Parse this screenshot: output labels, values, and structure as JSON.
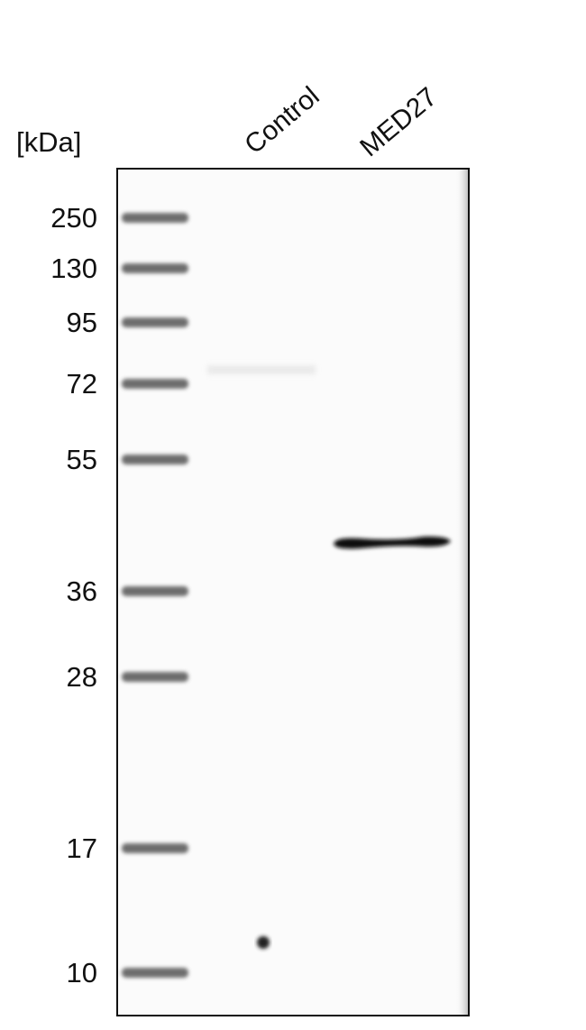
{
  "unit_label": "[kDa]",
  "lanes": [
    "Control",
    "MED27"
  ],
  "markers": [
    250,
    130,
    95,
    72,
    55,
    36,
    28,
    17,
    10
  ]
}
